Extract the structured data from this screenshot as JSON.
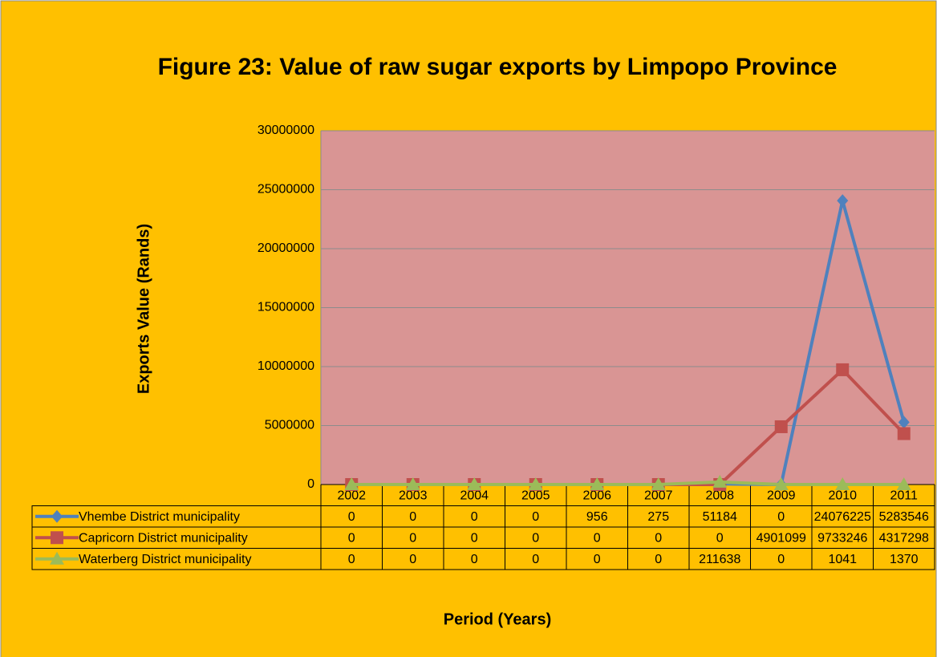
{
  "chart_data": {
    "type": "line",
    "title": "Figure 23: Value of raw sugar exports by Limpopo Province",
    "y_label": "Exports Value (Rands)",
    "x_label": "Period (Years)",
    "categories": [
      "2002",
      "2003",
      "2004",
      "2005",
      "2006",
      "2007",
      "2008",
      "2009",
      "2010",
      "2011"
    ],
    "series": [
      {
        "name": "Vhembe District municipality",
        "color": "#4f81bd",
        "marker": "diamond",
        "values": [
          0,
          0,
          0,
          0,
          956,
          275,
          51184,
          0,
          24076225,
          5283546
        ]
      },
      {
        "name": "Capricorn District municipality",
        "color": "#c0504d",
        "marker": "square",
        "values": [
          0,
          0,
          0,
          0,
          0,
          0,
          0,
          4901099,
          9733246,
          4317298
        ]
      },
      {
        "name": "Waterberg District municipality",
        "color": "#9bbb59",
        "marker": "triangle",
        "values": [
          0,
          0,
          0,
          0,
          0,
          0,
          211638,
          0,
          1041,
          1370
        ]
      }
    ],
    "ylim": [
      0,
      30000000
    ],
    "yticks": [
      0,
      5000000,
      10000000,
      15000000,
      20000000,
      25000000,
      30000000
    ],
    "grid": true,
    "data_table": true
  }
}
